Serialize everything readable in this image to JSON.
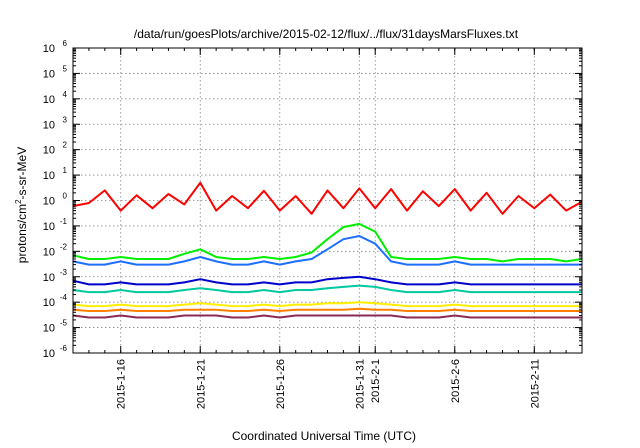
{
  "chart_data": {
    "type": "line",
    "title": "/data/run/goesPlots/archive/2015-02-12/flux/../flux/31daysMarsFluxes.txt",
    "xlabel": "Coordinated Universal Time (UTC)",
    "ylabel": "protons/cm2-s-sr-MeV",
    "ylabel_parts": {
      "pre": "protons/cm",
      "sup": "2",
      "post": "-s-sr-MeV"
    },
    "yscale": "log",
    "ylim": [
      1e-06,
      1000000.0
    ],
    "xlim": [
      "2015-01-13",
      "2015-02-14"
    ],
    "grid": true,
    "legend": "none",
    "y_ticks": [
      {
        "base": "10",
        "exp": "-6"
      },
      {
        "base": "10",
        "exp": "-5"
      },
      {
        "base": "10",
        "exp": "-4"
      },
      {
        "base": "10",
        "exp": "-3"
      },
      {
        "base": "10",
        "exp": "-2"
      },
      {
        "base": "10",
        "exp": "-1"
      },
      {
        "base": "10",
        "exp": "0"
      },
      {
        "base": "10",
        "exp": "1"
      },
      {
        "base": "10",
        "exp": "2"
      },
      {
        "base": "10",
        "exp": "3"
      },
      {
        "base": "10",
        "exp": "4"
      },
      {
        "base": "10",
        "exp": "5"
      },
      {
        "base": "10",
        "exp": "6"
      }
    ],
    "x_ticks": [
      {
        "date": "2015-01-16",
        "label": "2015-1-16"
      },
      {
        "date": "2015-01-21",
        "label": "2015-1-21"
      },
      {
        "date": "2015-01-26",
        "label": "2015-1-26"
      },
      {
        "date": "2015-01-31",
        "label": "2015-1-31"
      },
      {
        "date": "2015-02-01",
        "label": "2015-2-1"
      },
      {
        "date": "2015-02-06",
        "label": "2015-2-6"
      },
      {
        "date": "2015-02-11",
        "label": "2015-2-11"
      }
    ],
    "x": [
      "2015-01-13",
      "2015-01-14",
      "2015-01-15",
      "2015-01-16",
      "2015-01-17",
      "2015-01-18",
      "2015-01-19",
      "2015-01-20",
      "2015-01-21",
      "2015-01-22",
      "2015-01-23",
      "2015-01-24",
      "2015-01-25",
      "2015-01-26",
      "2015-01-27",
      "2015-01-28",
      "2015-01-29",
      "2015-01-30",
      "2015-01-31",
      "2015-02-01",
      "2015-02-02",
      "2015-02-03",
      "2015-02-04",
      "2015-02-05",
      "2015-02-06",
      "2015-02-07",
      "2015-02-08",
      "2015-02-09",
      "2015-02-10",
      "2015-02-11",
      "2015-02-12",
      "2015-02-13",
      "2015-02-14"
    ],
    "series": [
      {
        "color": "#ff0000",
        "values": [
          0.6,
          0.8,
          2.5,
          0.4,
          1.6,
          0.5,
          1.8,
          0.7,
          5.0,
          0.4,
          1.5,
          0.5,
          2.4,
          0.4,
          1.5,
          0.3,
          2.5,
          0.5,
          3.0,
          0.5,
          2.8,
          0.4,
          2.3,
          0.6,
          2.8,
          0.4,
          2.0,
          0.3,
          1.5,
          0.5,
          1.7,
          0.4,
          0.9
        ]
      },
      {
        "color": "#00ee00",
        "values": [
          0.007,
          0.005,
          0.005,
          0.006,
          0.005,
          0.005,
          0.005,
          0.008,
          0.012,
          0.006,
          0.005,
          0.005,
          0.006,
          0.005,
          0.006,
          0.009,
          0.03,
          0.09,
          0.12,
          0.06,
          0.006,
          0.005,
          0.005,
          0.005,
          0.006,
          0.005,
          0.005,
          0.004,
          0.005,
          0.005,
          0.005,
          0.004,
          0.005
        ]
      },
      {
        "color": "#1e6fff",
        "values": [
          0.004,
          0.003,
          0.003,
          0.004,
          0.003,
          0.003,
          0.003,
          0.004,
          0.006,
          0.004,
          0.003,
          0.003,
          0.004,
          0.003,
          0.004,
          0.005,
          0.012,
          0.03,
          0.04,
          0.02,
          0.004,
          0.003,
          0.003,
          0.003,
          0.004,
          0.003,
          0.003,
          0.003,
          0.003,
          0.003,
          0.003,
          0.003,
          0.003
        ]
      },
      {
        "color": "#0000cc",
        "values": [
          0.0007,
          0.0005,
          0.0005,
          0.0006,
          0.0005,
          0.0005,
          0.0005,
          0.0006,
          0.0008,
          0.0006,
          0.0005,
          0.0005,
          0.0006,
          0.0005,
          0.0006,
          0.0006,
          0.0008,
          0.0009,
          0.001,
          0.0008,
          0.0006,
          0.0005,
          0.0005,
          0.0005,
          0.0006,
          0.0005,
          0.0005,
          0.0005,
          0.0005,
          0.0005,
          0.0005,
          0.0005,
          0.0005
        ]
      },
      {
        "color": "#00c8a0",
        "values": [
          0.0003,
          0.00025,
          0.00025,
          0.0003,
          0.00025,
          0.00025,
          0.00025,
          0.0003,
          0.00035,
          0.0003,
          0.00025,
          0.00025,
          0.0003,
          0.00025,
          0.0003,
          0.0003,
          0.00035,
          0.0004,
          0.00045,
          0.0004,
          0.0003,
          0.00025,
          0.00025,
          0.00025,
          0.0003,
          0.00025,
          0.00025,
          0.00025,
          0.00025,
          0.00025,
          0.00025,
          0.00025,
          0.00025
        ]
      },
      {
        "color": "#ffee00",
        "values": [
          8e-05,
          7e-05,
          7e-05,
          8e-05,
          7e-05,
          7e-05,
          7e-05,
          8e-05,
          9e-05,
          8e-05,
          7e-05,
          7e-05,
          8e-05,
          7e-05,
          8e-05,
          8e-05,
          9e-05,
          9e-05,
          0.0001,
          9e-05,
          8e-05,
          7e-05,
          7e-05,
          7e-05,
          8e-05,
          7e-05,
          7e-05,
          7e-05,
          7e-05,
          7e-05,
          7e-05,
          7e-05,
          7e-05
        ]
      },
      {
        "color": "#ff8000",
        "values": [
          5e-05,
          4.5e-05,
          4.5e-05,
          5e-05,
          4.5e-05,
          4.5e-05,
          4.5e-05,
          5e-05,
          5e-05,
          5e-05,
          4.5e-05,
          4.5e-05,
          5e-05,
          4.5e-05,
          5e-05,
          5e-05,
          5e-05,
          5e-05,
          5.5e-05,
          5e-05,
          5e-05,
          4.5e-05,
          4.5e-05,
          4.5e-05,
          5e-05,
          4.5e-05,
          4.5e-05,
          4.5e-05,
          4.5e-05,
          4.5e-05,
          4.5e-05,
          4.5e-05,
          4.5e-05
        ]
      },
      {
        "color": "#8b2a55",
        "values": [
          3e-05,
          2.5e-05,
          2.5e-05,
          3e-05,
          2.5e-05,
          2.5e-05,
          2.5e-05,
          3e-05,
          3e-05,
          3e-05,
          2.5e-05,
          2.5e-05,
          3e-05,
          2.5e-05,
          3e-05,
          3e-05,
          3e-05,
          3e-05,
          3e-05,
          3e-05,
          3e-05,
          2.5e-05,
          2.5e-05,
          2.5e-05,
          3e-05,
          2.5e-05,
          2.5e-05,
          2.5e-05,
          2.5e-05,
          2.5e-05,
          2.5e-05,
          2.5e-05,
          2.5e-05
        ]
      }
    ]
  }
}
